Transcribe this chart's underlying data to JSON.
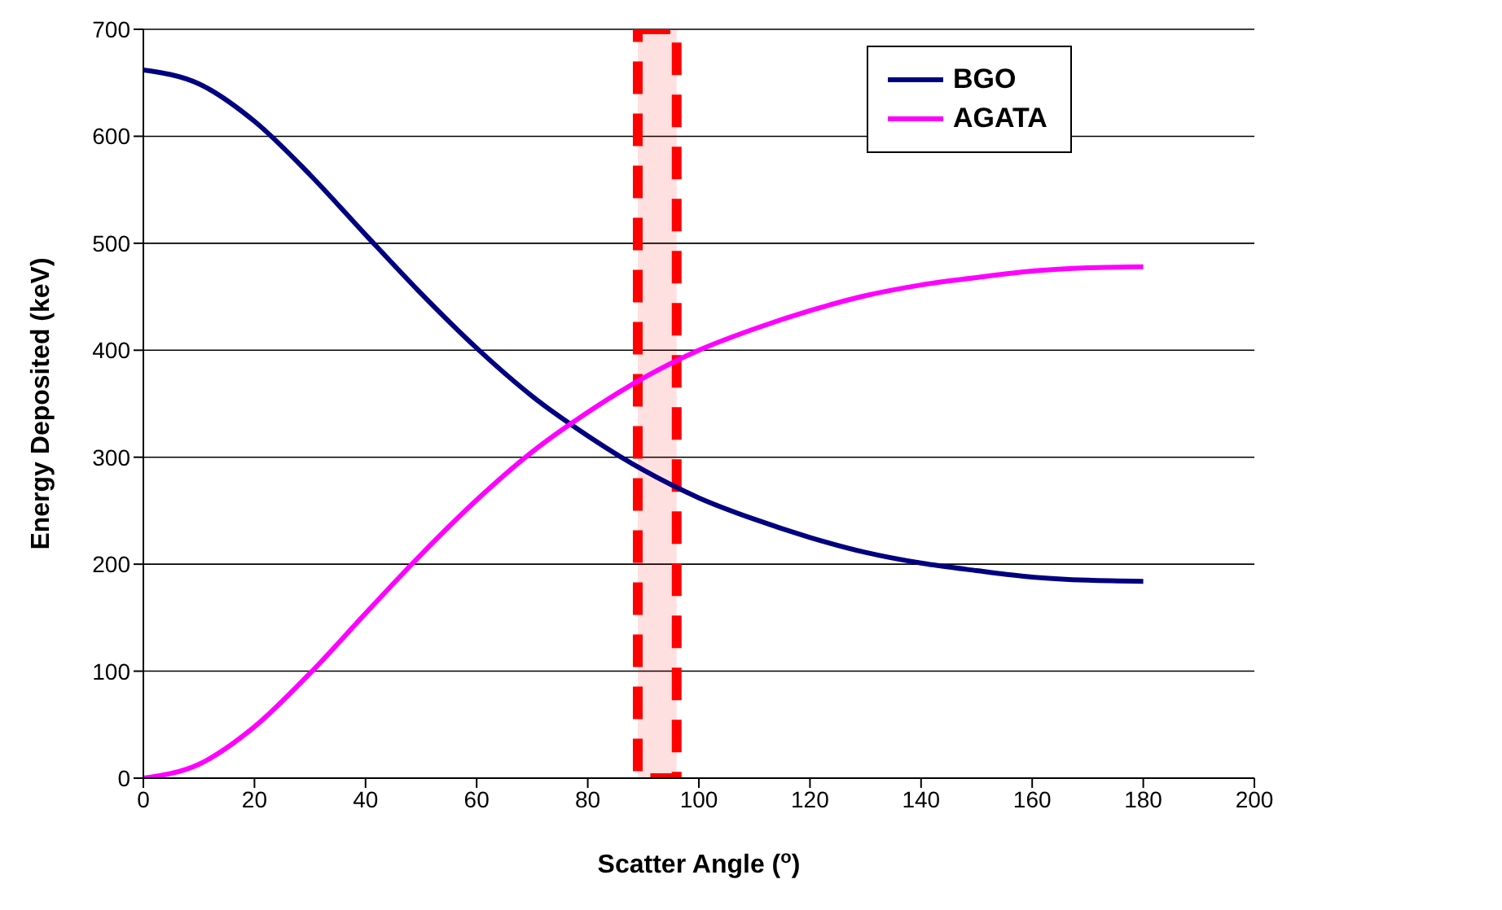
{
  "chart_data": {
    "type": "line",
    "xlabel": "Scatter Angle ($^{o}$)",
    "ylabel": "Energy Deposited (keV)",
    "x": [
      0,
      10,
      20,
      30,
      40,
      50,
      60,
      70,
      80,
      90,
      100,
      110,
      120,
      130,
      140,
      150,
      160,
      170,
      180
    ],
    "series": [
      {
        "name": "BGO",
        "color": "#000080",
        "values": [
          662,
          649,
          614,
          564,
          508,
          453,
          402,
          357,
          320,
          288,
          262,
          242,
          225,
          211,
          201,
          194,
          188,
          185,
          184
        ]
      },
      {
        "name": "AGATA",
        "color": "#ff00ff",
        "values": [
          0,
          13,
          48,
          98,
          154,
          209,
          260,
          305,
          342,
          374,
          400,
          420,
          437,
          451,
          461,
          468,
          474,
          477,
          478
        ]
      }
    ],
    "xlim": [
      0,
      200
    ],
    "xticks": [
      0,
      20,
      40,
      60,
      80,
      100,
      120,
      140,
      160,
      180,
      200
    ],
    "ylim": [
      0,
      700
    ],
    "yticks": [
      0,
      100,
      200,
      300,
      400,
      500,
      600,
      700
    ],
    "grid": "y",
    "legend": "top right",
    "marker": "none",
    "line_style": "solid",
    "bands": [
      {
        "axis": "x",
        "from": 89,
        "to": 96,
        "color": "#ff0000"
      }
    ]
  }
}
